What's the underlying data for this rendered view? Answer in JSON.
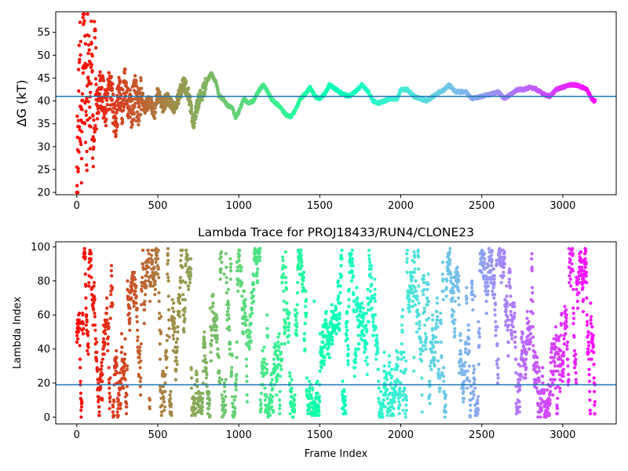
{
  "chart_data": [
    {
      "type": "scatter",
      "title": "",
      "xlabel": "",
      "ylabel": "ΔG (kT)",
      "xlim": [
        -130,
        3330
      ],
      "ylim": [
        19.5,
        59.5
      ],
      "xticks": [
        0,
        500,
        1000,
        1500,
        2000,
        2500,
        3000
      ],
      "yticks": [
        20,
        25,
        30,
        35,
        40,
        45,
        50,
        55
      ],
      "hline": 41.0,
      "hline_color": "#1f77b4",
      "colormap": "rainbow (reversed along frame index)",
      "grid": false,
      "legend": "none",
      "trace": [
        [
          0,
          20.0
        ],
        [
          10,
          36.0
        ],
        [
          20,
          47.0
        ],
        [
          30,
          28.0
        ],
        [
          40,
          55.0
        ],
        [
          50,
          44.0
        ],
        [
          60,
          32.0
        ],
        [
          70,
          52.0
        ],
        [
          80,
          38.0
        ],
        [
          90,
          49.0
        ],
        [
          100,
          36.0
        ],
        [
          110,
          47.0
        ],
        [
          120,
          37.0
        ],
        [
          140,
          43.0
        ],
        [
          160,
          41.0
        ],
        [
          180,
          39.0
        ],
        [
          200,
          43.0
        ],
        [
          220,
          40.0
        ],
        [
          240,
          35.0
        ],
        [
          260,
          42.0
        ],
        [
          280,
          39.0
        ],
        [
          300,
          44.0
        ],
        [
          320,
          40.0
        ],
        [
          340,
          38.5
        ],
        [
          360,
          41.0
        ],
        [
          380,
          39.0
        ],
        [
          400,
          41.5
        ],
        [
          420,
          38.5
        ],
        [
          450,
          40.0
        ],
        [
          480,
          37.5
        ],
        [
          500,
          42.0
        ],
        [
          530,
          39.0
        ],
        [
          560,
          40.5
        ],
        [
          600,
          38.0
        ],
        [
          630,
          41.0
        ],
        [
          660,
          44.0
        ],
        [
          690,
          41.5
        ],
        [
          720,
          35.0
        ],
        [
          750,
          40.0
        ],
        [
          780,
          42.0
        ],
        [
          800,
          44.0
        ],
        [
          830,
          46.0
        ],
        [
          860,
          44.0
        ],
        [
          880,
          41.0
        ],
        [
          900,
          40.5
        ],
        [
          930,
          39.0
        ],
        [
          960,
          38.5
        ],
        [
          980,
          36.5
        ],
        [
          1000,
          37.5
        ],
        [
          1030,
          40.5
        ],
        [
          1060,
          39.5
        ],
        [
          1090,
          40.0
        ],
        [
          1120,
          42.0
        ],
        [
          1150,
          43.5
        ],
        [
          1180,
          42.0
        ],
        [
          1200,
          40.5
        ],
        [
          1230,
          39.5
        ],
        [
          1260,
          38.5
        ],
        [
          1290,
          37.0
        ],
        [
          1320,
          36.5
        ],
        [
          1350,
          38.0
        ],
        [
          1380,
          40.5
        ],
        [
          1410,
          41.5
        ],
        [
          1440,
          43.0
        ],
        [
          1470,
          41.0
        ],
        [
          1500,
          40.5
        ],
        [
          1530,
          41.5
        ],
        [
          1560,
          43.5
        ],
        [
          1600,
          42.5
        ],
        [
          1640,
          41.5
        ],
        [
          1680,
          41.0
        ],
        [
          1720,
          42.0
        ],
        [
          1760,
          43.5
        ],
        [
          1800,
          42.0
        ],
        [
          1830,
          40.0
        ],
        [
          1860,
          39.5
        ],
        [
          1900,
          40.0
        ],
        [
          1940,
          40.5
        ],
        [
          1980,
          40.5
        ],
        [
          2000,
          42.5
        ],
        [
          2040,
          42.5
        ],
        [
          2080,
          41.0
        ],
        [
          2120,
          40.5
        ],
        [
          2160,
          40.0
        ],
        [
          2200,
          41.0
        ],
        [
          2240,
          42.0
        ],
        [
          2270,
          42.5
        ],
        [
          2300,
          43.5
        ],
        [
          2340,
          42.0
        ],
        [
          2400,
          42.0
        ],
        [
          2440,
          40.5
        ],
        [
          2500,
          41.0
        ],
        [
          2560,
          41.5
        ],
        [
          2600,
          42.0
        ],
        [
          2640,
          40.5
        ],
        [
          2680,
          41.5
        ],
        [
          2720,
          42.5
        ],
        [
          2760,
          42.5
        ],
        [
          2800,
          43.0
        ],
        [
          2840,
          42.5
        ],
        [
          2880,
          41.5
        ],
        [
          2920,
          41.0
        ],
        [
          2960,
          42.5
        ],
        [
          3000,
          43.0
        ],
        [
          3040,
          43.5
        ],
        [
          3080,
          43.5
        ],
        [
          3120,
          43.0
        ],
        [
          3150,
          42.5
        ],
        [
          3170,
          41.0
        ],
        [
          3190,
          40.0
        ]
      ]
    },
    {
      "type": "scatter",
      "title": "Lambda Trace for PROJ18433/RUN4/CLONE23",
      "xlabel": "Frame Index",
      "ylabel": "Lambda Index",
      "xlim": [
        -130,
        3330
      ],
      "ylim": [
        -4,
        103
      ],
      "xticks": [
        0,
        500,
        1000,
        1500,
        2000,
        2500,
        3000
      ],
      "yticks": [
        0,
        20,
        40,
        60,
        80,
        100
      ],
      "hline": 19,
      "hline_color": "#1f77b4",
      "colormap": "rainbow (reversed along frame index)",
      "grid": false,
      "legend": "none",
      "n_points": 3200,
      "value_range": [
        0,
        99
      ]
    }
  ]
}
